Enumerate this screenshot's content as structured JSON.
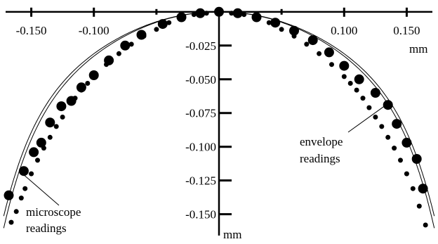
{
  "chart_data": {
    "type": "scatter",
    "title": "",
    "x_unit": "mm",
    "y_unit": "mm",
    "xlim": [
      -0.175,
      0.175
    ],
    "ylim": [
      -0.17,
      0.002
    ],
    "x_ticks": [
      -0.15,
      -0.1,
      0.1,
      0.15
    ],
    "x_tick_labels": [
      "-0.150",
      "-0.100",
      "0.100",
      "0.150"
    ],
    "x_minor_ticks": [
      -0.05,
      0.05
    ],
    "y_ticks": [
      -0.025,
      -0.05,
      -0.075,
      -0.1,
      -0.125,
      -0.15
    ],
    "y_tick_labels": [
      "-0.025",
      "-0.050",
      "-0.075",
      "-0.100",
      "-0.125",
      "-0.150"
    ],
    "grid": false,
    "series": [
      {
        "marker": "small-dot",
        "x": [
          -0.166,
          -0.162,
          -0.158,
          -0.155,
          -0.15,
          -0.145,
          -0.14,
          -0.135,
          -0.13,
          -0.125,
          -0.115,
          -0.11,
          -0.105,
          -0.1,
          -0.09,
          -0.08,
          -0.07,
          -0.06,
          -0.05,
          -0.04,
          -0.03,
          -0.02,
          -0.01,
          0.0,
          0.01,
          0.02,
          0.03,
          0.04,
          0.05,
          0.06,
          0.07,
          0.08,
          0.09,
          0.1,
          0.105,
          0.11,
          0.115,
          0.12,
          0.125,
          0.13,
          0.135,
          0.14,
          0.145,
          0.15,
          0.155,
          0.16,
          0.165
        ],
        "y": [
          -0.156,
          -0.148,
          -0.138,
          -0.131,
          -0.12,
          -0.11,
          -0.101,
          -0.093,
          -0.085,
          -0.078,
          -0.064,
          -0.058,
          -0.053,
          -0.048,
          -0.039,
          -0.031,
          -0.024,
          -0.018,
          -0.013,
          -0.008,
          -0.005,
          -0.002,
          -0.001,
          0.0,
          -0.001,
          -0.002,
          -0.005,
          -0.008,
          -0.013,
          -0.018,
          -0.024,
          -0.031,
          -0.039,
          -0.048,
          -0.053,
          -0.058,
          -0.064,
          -0.071,
          -0.078,
          -0.085,
          -0.093,
          -0.101,
          -0.11,
          -0.12,
          -0.131,
          -0.144,
          -0.158
        ]
      },
      {
        "marker": "large-dot",
        "x": [
          -0.168,
          -0.156,
          -0.148,
          -0.142,
          -0.135,
          -0.126,
          -0.118,
          -0.11,
          -0.1,
          -0.088,
          -0.075,
          -0.062,
          -0.045,
          -0.03,
          -0.015,
          0.0,
          0.015,
          0.03,
          0.045,
          0.06,
          0.075,
          0.088,
          0.1,
          0.112,
          0.125,
          0.135,
          0.142,
          0.15,
          0.158,
          0.163
        ],
        "y": [
          -0.136,
          -0.118,
          -0.104,
          -0.097,
          -0.082,
          -0.07,
          -0.066,
          -0.056,
          -0.047,
          -0.036,
          -0.025,
          -0.017,
          -0.009,
          -0.004,
          -0.001,
          0.0,
          -0.001,
          -0.004,
          -0.008,
          -0.014,
          -0.021,
          -0.03,
          -0.04,
          -0.05,
          -0.06,
          -0.069,
          -0.083,
          -0.097,
          -0.109,
          -0.131
        ]
      }
    ],
    "annotations": [
      {
        "lines": [
          "envelope",
          "readings"
        ],
        "point": [
          0.135,
          -0.068
        ]
      },
      {
        "lines": [
          "microscope",
          "readings"
        ],
        "point": [
          -0.157,
          -0.12
        ]
      }
    ]
  }
}
